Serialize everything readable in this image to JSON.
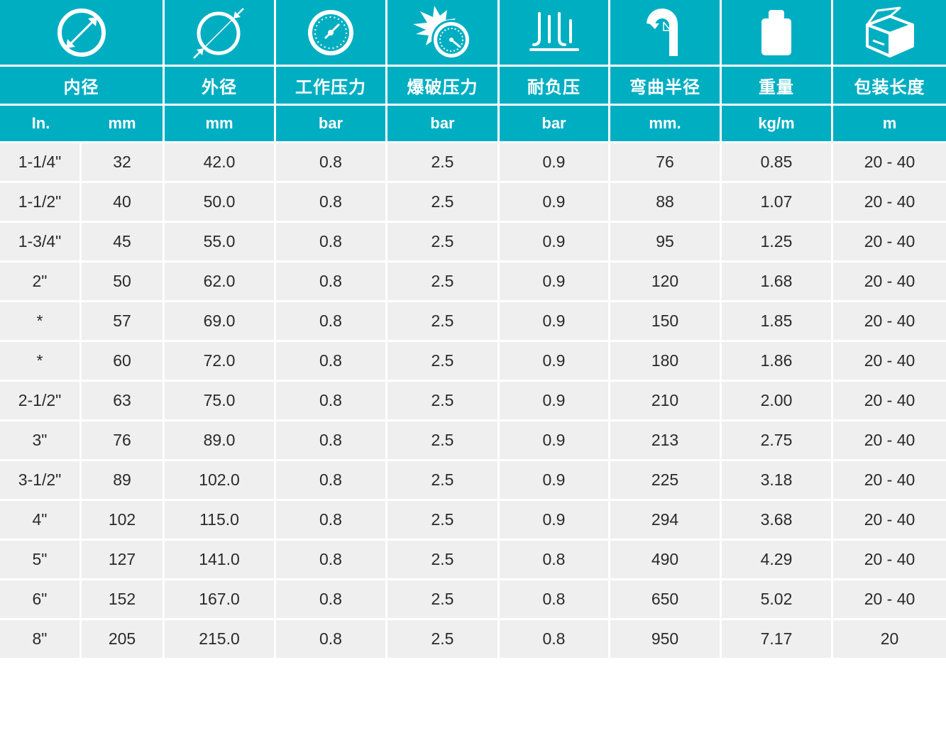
{
  "header": {
    "icons": [
      "inner-diameter-icon",
      "outer-diameter-icon",
      "pressure-gauge-icon",
      "burst-gauge-icon",
      "vacuum-icon",
      "bend-radius-icon",
      "weight-icon",
      "package-box-icon"
    ],
    "titles": {
      "inner_diameter": "内径",
      "outer_diameter": "外径",
      "working_pressure": "工作压力",
      "burst_pressure": "爆破压力",
      "vacuum": "耐负压",
      "bend_radius": "弯曲半径",
      "weight": "重量",
      "package_length": "包装长度"
    },
    "units": {
      "inch": "In.",
      "inner_mm": "mm",
      "outer_mm": "mm",
      "working_pressure": "bar",
      "burst_pressure": "bar",
      "vacuum": "bar",
      "bend_radius": "mm.",
      "weight": "kg/m",
      "package_length": "m"
    }
  },
  "colors": {
    "header_bg": "#00aec2",
    "row_bg": "#efefef",
    "text": "#2a2a2a"
  },
  "rows": [
    [
      "1-1/4\"",
      "32",
      "42.0",
      "0.8",
      "2.5",
      "0.9",
      "76",
      "0.85",
      "20 - 40"
    ],
    [
      "1-1/2\"",
      "40",
      "50.0",
      "0.8",
      "2.5",
      "0.9",
      "88",
      "1.07",
      "20 - 40"
    ],
    [
      "1-3/4\"",
      "45",
      "55.0",
      "0.8",
      "2.5",
      "0.9",
      "95",
      "1.25",
      "20 - 40"
    ],
    [
      "2\"",
      "50",
      "62.0",
      "0.8",
      "2.5",
      "0.9",
      "120",
      "1.68",
      "20 - 40"
    ],
    [
      "*",
      "57",
      "69.0",
      "0.8",
      "2.5",
      "0.9",
      "150",
      "1.85",
      "20 - 40"
    ],
    [
      "*",
      "60",
      "72.0",
      "0.8",
      "2.5",
      "0.9",
      "180",
      "1.86",
      "20 - 40"
    ],
    [
      "2-1/2\"",
      "63",
      "75.0",
      "0.8",
      "2.5",
      "0.9",
      "210",
      "2.00",
      "20 - 40"
    ],
    [
      "3\"",
      "76",
      "89.0",
      "0.8",
      "2.5",
      "0.9",
      "213",
      "2.75",
      "20 - 40"
    ],
    [
      "3-1/2\"",
      "89",
      "102.0",
      "0.8",
      "2.5",
      "0.9",
      "225",
      "3.18",
      "20 - 40"
    ],
    [
      "4\"",
      "102",
      "115.0",
      "0.8",
      "2.5",
      "0.9",
      "294",
      "3.68",
      "20 - 40"
    ],
    [
      "5\"",
      "127",
      "141.0",
      "0.8",
      "2.5",
      "0.8",
      "490",
      "4.29",
      "20 - 40"
    ],
    [
      "6\"",
      "152",
      "167.0",
      "0.8",
      "2.5",
      "0.8",
      "650",
      "5.02",
      "20 - 40"
    ],
    [
      "8\"",
      "205",
      "215.0",
      "0.8",
      "2.5",
      "0.8",
      "950",
      "7.17",
      "20"
    ]
  ]
}
